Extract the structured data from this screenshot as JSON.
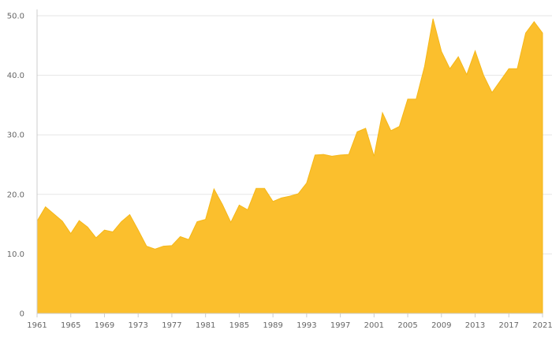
{
  "chart_data": {
    "type": "area",
    "title": "",
    "xlabel": "",
    "ylabel": "",
    "x": [
      1961,
      1962,
      1963,
      1964,
      1965,
      1966,
      1967,
      1968,
      1969,
      1970,
      1971,
      1972,
      1973,
      1974,
      1975,
      1976,
      1977,
      1978,
      1979,
      1980,
      1981,
      1982,
      1983,
      1984,
      1985,
      1986,
      1987,
      1988,
      1989,
      1990,
      1991,
      1992,
      1993,
      1994,
      1995,
      1996,
      1997,
      1998,
      1999,
      2000,
      2001,
      2002,
      2003,
      2004,
      2005,
      2006,
      2007,
      2008,
      2009,
      2010,
      2011,
      2012,
      2013,
      2014,
      2015,
      2016,
      2017,
      2018,
      2019,
      2020,
      2021
    ],
    "series": [
      {
        "values": [
          15.5,
          17.9,
          16.7,
          15.5,
          13.4,
          15.6,
          14.5,
          12.7,
          14.0,
          13.7,
          15.4,
          16.6,
          14.0,
          11.3,
          10.8,
          11.3,
          11.4,
          12.9,
          12.4,
          15.4,
          15.8,
          20.9,
          18.3,
          15.3,
          18.2,
          17.4,
          21.0,
          21.0,
          18.8,
          19.4,
          19.7,
          20.1,
          21.9,
          26.6,
          26.7,
          26.4,
          26.6,
          26.7,
          30.5,
          31.1,
          26.4,
          33.7,
          30.7,
          31.4,
          36.0,
          36.0,
          41.5,
          49.5,
          44.0,
          41.1,
          43.1,
          40.1,
          44.1,
          40.0,
          37.1,
          39.1,
          41.1,
          41.1,
          47.1,
          49.0,
          47.1
        ],
        "color": "#fbbf2d"
      }
    ],
    "xlim": [
      1961,
      2021
    ],
    "ylim": [
      0,
      50
    ],
    "x_ticks": [
      1961,
      1965,
      1969,
      1973,
      1977,
      1981,
      1985,
      1989,
      1993,
      1997,
      2001,
      2005,
      2009,
      2013,
      2017,
      2021
    ],
    "y_ticks": [
      0,
      10,
      20,
      30,
      40,
      50
    ],
    "y_tick_labels": [
      "0",
      "10.0",
      "20.0",
      "30.0",
      "40.0",
      "50.0"
    ],
    "grid": true,
    "legend": "none"
  }
}
